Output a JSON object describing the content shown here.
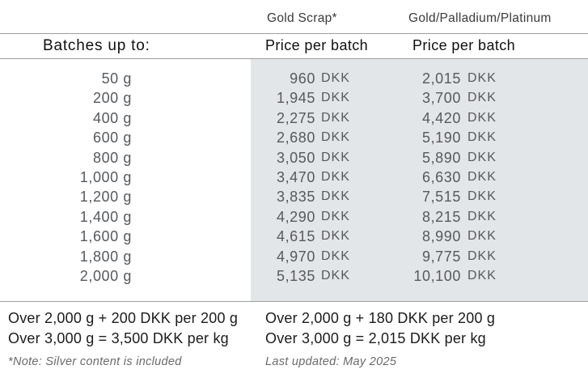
{
  "header": {
    "gold_scrap": "Gold Scrap*",
    "gold_palladium_platinum": "Gold/Palladium/Platinum",
    "batches_label": "Batches up to:",
    "price_per_batch_gold_scrap": "Price per batch",
    "price_per_batch_gpp": "Price per batch"
  },
  "footer": {
    "gold_scrap_over_2000": "Over 2,000 g + 200 DKK per 200 g",
    "gold_scrap_over_3000": "Over 3,000 g = 3,500 DKK per kg",
    "gpp_over_2000": "Over 2,000 g + 180 DKK per 200 g",
    "gpp_over_3000": "Over 3,000 g = 2,015 DKK per kg",
    "note": "*Note: Silver content is included",
    "last_updated": "Last updated: May 2025"
  },
  "colors": {
    "panel_background": "#e3e6e9",
    "rule_line": "#9e9e9e",
    "text_dark": "#101010",
    "text_muted": "#56595d"
  },
  "chart_data": {
    "type": "table",
    "currency": "DKK",
    "columns": [
      "Batches up to:",
      "Gold Scrap* Price per batch",
      "Gold/Palladium/Platinum Price per batch"
    ],
    "rows": [
      {
        "batch": "50 g",
        "gold_scrap": "960",
        "gold_palladium_platinum": "2,015"
      },
      {
        "batch": "200 g",
        "gold_scrap": "1,945",
        "gold_palladium_platinum": "3,700"
      },
      {
        "batch": "400 g",
        "gold_scrap": "2,275",
        "gold_palladium_platinum": "4,420"
      },
      {
        "batch": "600 g",
        "gold_scrap": "2,680",
        "gold_palladium_platinum": "5,190"
      },
      {
        "batch": "800 g",
        "gold_scrap": "3,050",
        "gold_palladium_platinum": "5,890"
      },
      {
        "batch": "1,000 g",
        "gold_scrap": "3,470",
        "gold_palladium_platinum": "6,630"
      },
      {
        "batch": "1,200 g",
        "gold_scrap": "3,835",
        "gold_palladium_platinum": "7,515"
      },
      {
        "batch": "1,400 g",
        "gold_scrap": "4,290",
        "gold_palladium_platinum": "8,215"
      },
      {
        "batch": "1,600 g",
        "gold_scrap": "4,615",
        "gold_palladium_platinum": "8,990"
      },
      {
        "batch": "1,800 g",
        "gold_scrap": "4,970",
        "gold_palladium_platinum": "9,775"
      },
      {
        "batch": "2,000 g",
        "gold_scrap": "5,135",
        "gold_palladium_platinum": "10,100"
      }
    ],
    "extra_pricing_rules": {
      "gold_scrap": [
        "Over 2,000 g + 200 DKK per 200 g",
        "Over 3,000 g = 3,500 DKK per kg"
      ],
      "gold_palladium_platinum": [
        "Over 2,000 g + 180 DKK per 200 g",
        "Over 3,000 g = 2,015 DKK per kg"
      ]
    },
    "footnotes": [
      "*Note: Silver content is included",
      "Last updated: May 2025"
    ]
  }
}
